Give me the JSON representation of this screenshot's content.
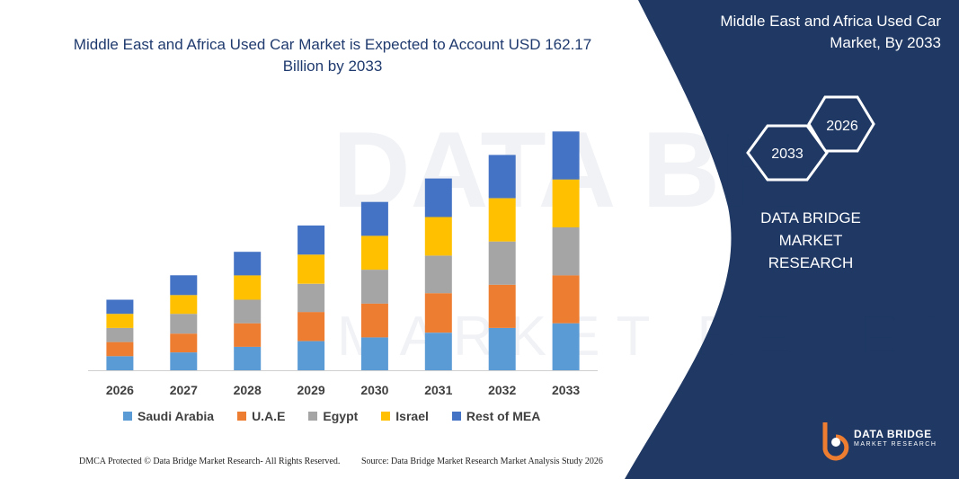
{
  "chart_data": {
    "type": "bar",
    "stacked": true,
    "title": "Middle East and Africa Used Car Market is Expected to Account USD 162.17 Billion by 2033",
    "categories": [
      "2026",
      "2027",
      "2028",
      "2029",
      "2030",
      "2031",
      "2032",
      "2033"
    ],
    "series": [
      {
        "name": "Saudi Arabia",
        "color": "#5b9bd5",
        "values": [
          15,
          19,
          25,
          31,
          35,
          40,
          45,
          50
        ]
      },
      {
        "name": "U.A.E",
        "color": "#ed7d31",
        "values": [
          15,
          20,
          25,
          31,
          36,
          42,
          46,
          51
        ]
      },
      {
        "name": "Egypt",
        "color": "#a5a5a5",
        "values": [
          15,
          21,
          25,
          30,
          36,
          40,
          46,
          51
        ]
      },
      {
        "name": "Israel",
        "color": "#ffc000",
        "values": [
          15,
          20,
          26,
          31,
          36,
          41,
          46,
          51
        ]
      },
      {
        "name": "Rest of MEA",
        "color": "#4472c4",
        "values": [
          15,
          21,
          25,
          31,
          36,
          41,
          46,
          51
        ]
      }
    ],
    "ylim": [
      0,
      260
    ],
    "grid": false,
    "legend_position": "bottom"
  },
  "panel": {
    "title_line1": "Middle East and Africa Used Car",
    "title_line2": "Market, By 2033",
    "hex_back": "2026",
    "hex_front": "2033",
    "company_line1": "DATA BRIDGE MARKET",
    "company_line2": "RESEARCH",
    "logo_line1": "DATA BRIDGE",
    "logo_line2": "MARKET RESEARCH",
    "bg_color": "#1f3864"
  },
  "footer": {
    "left": "DMCA Protected © Data Bridge Market Research- All Rights Reserved.",
    "right": "Source: Data Bridge Market Research Market Analysis Study 2026"
  }
}
